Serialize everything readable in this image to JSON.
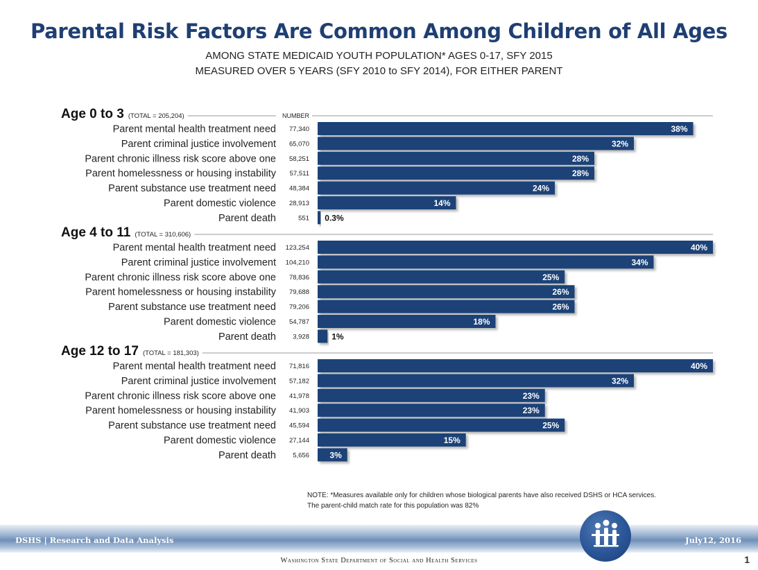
{
  "header": {
    "title": "Parental Risk Factors Are Common Among Children of All Ages",
    "subtitle_line1": "AMONG STATE MEDICAID YOUTH POPULATION* AGES 0-17, SFY 2015",
    "subtitle_line2": "MEASURED OVER 5 YEARS (SFY 2010 to SFY 2014), FOR EITHER PARENT"
  },
  "chart_data": {
    "type": "bar",
    "orientation": "horizontal",
    "number_column_header": "NUMBER",
    "bar_color": "#1f4378",
    "groups": [
      {
        "name": "Age 0 to 3",
        "total_label": "(TOTAL = 205,204)",
        "items": [
          {
            "label": "Parent mental health treatment need",
            "number": "77,340",
            "pct": 38,
            "pct_label": "38%"
          },
          {
            "label": "Parent criminal justice involvement",
            "number": "65,070",
            "pct": 32,
            "pct_label": "32%"
          },
          {
            "label": "Parent chronic illness risk score above one",
            "number": "58,251",
            "pct": 28,
            "pct_label": "28%"
          },
          {
            "label": "Parent homelessness or housing instability",
            "number": "57,511",
            "pct": 28,
            "pct_label": "28%"
          },
          {
            "label": "Parent substance use treatment need",
            "number": "48,384",
            "pct": 24,
            "pct_label": "24%"
          },
          {
            "label": "Parent domestic violence",
            "number": "28,913",
            "pct": 14,
            "pct_label": "14%"
          },
          {
            "label": "Parent death",
            "number": "551",
            "pct": 0.3,
            "pct_label": "0.3%"
          }
        ]
      },
      {
        "name": "Age 4 to 11",
        "total_label": "(TOTAL = 310,606)",
        "items": [
          {
            "label": "Parent mental health treatment need",
            "number": "123,254",
            "pct": 40,
            "pct_label": "40%"
          },
          {
            "label": "Parent criminal justice involvement",
            "number": "104,210",
            "pct": 34,
            "pct_label": "34%"
          },
          {
            "label": "Parent chronic illness risk score above one",
            "number": "78,836",
            "pct": 25,
            "pct_label": "25%"
          },
          {
            "label": "Parent homelessness or housing instability",
            "number": "79,688",
            "pct": 26,
            "pct_label": "26%"
          },
          {
            "label": "Parent substance use treatment need",
            "number": "79,206",
            "pct": 26,
            "pct_label": "26%"
          },
          {
            "label": "Parent domestic violence",
            "number": "54,787",
            "pct": 18,
            "pct_label": "18%"
          },
          {
            "label": "Parent death",
            "number": "3,928",
            "pct": 1,
            "pct_label": "1%"
          }
        ]
      },
      {
        "name": "Age 12 to 17",
        "total_label": "(TOTAL = 181,303)",
        "items": [
          {
            "label": "Parent mental health treatment need",
            "number": "71,816",
            "pct": 40,
            "pct_label": "40%"
          },
          {
            "label": "Parent criminal justice involvement",
            "number": "57,182",
            "pct": 32,
            "pct_label": "32%"
          },
          {
            "label": "Parent chronic illness risk score above one",
            "number": "41,978",
            "pct": 23,
            "pct_label": "23%"
          },
          {
            "label": "Parent homelessness or housing instability",
            "number": "41,903",
            "pct": 23,
            "pct_label": "23%"
          },
          {
            "label": "Parent substance use treatment need",
            "number": "45,594",
            "pct": 25,
            "pct_label": "25%"
          },
          {
            "label": "Parent domestic violence",
            "number": "27,144",
            "pct": 15,
            "pct_label": "15%"
          },
          {
            "label": "Parent death",
            "number": "5,656",
            "pct": 3,
            "pct_label": "3%"
          }
        ]
      }
    ]
  },
  "note": {
    "line1": "NOTE: *Measures  available  only for children whose biological parents have also received DSHS or HCA services.",
    "line2": "The parent-child match rate for this  population was  82%"
  },
  "footer": {
    "left": "DSHS | Research and Data Analysis",
    "right": "July12, 2016",
    "department": "Washington State Department of Social and Health Services",
    "page_number": "1"
  }
}
